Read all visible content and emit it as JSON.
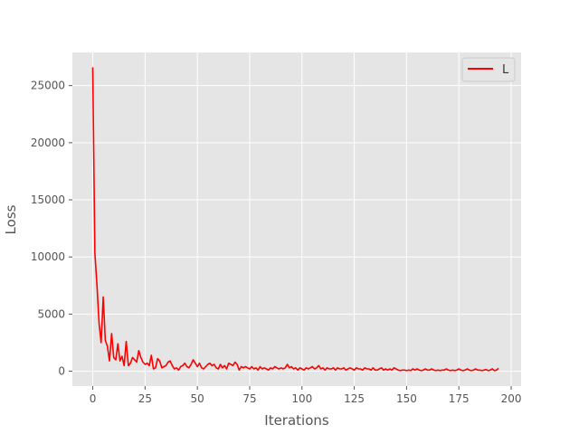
{
  "chart_data": {
    "type": "line",
    "title": "",
    "xlabel": "Iterations",
    "ylabel": "Loss",
    "xlim": [
      -9.75,
      204.75
    ],
    "ylim": [
      -1300,
      27900
    ],
    "xticks": [
      0,
      25,
      50,
      75,
      100,
      125,
      150,
      175,
      200
    ],
    "xtick_labels": [
      "0",
      "25",
      "50",
      "75",
      "100",
      "125",
      "150",
      "175",
      "200"
    ],
    "yticks": [
      0,
      5000,
      10000,
      15000,
      20000,
      25000
    ],
    "ytick_labels": [
      "0",
      "5000",
      "10000",
      "15000",
      "20000",
      "25000"
    ],
    "grid": true,
    "legend": {
      "position": "top-right"
    },
    "series": [
      {
        "name": "L",
        "color": "#ff0000",
        "x": [
          0,
          1,
          2,
          3,
          4,
          5,
          6,
          7,
          8,
          9,
          10,
          11,
          12,
          13,
          14,
          15,
          16,
          17,
          18,
          19,
          20,
          21,
          22,
          23,
          24,
          25,
          26,
          27,
          28,
          29,
          30,
          31,
          32,
          33,
          34,
          35,
          36,
          37,
          38,
          39,
          40,
          41,
          42,
          43,
          44,
          45,
          46,
          47,
          48,
          49,
          50,
          51,
          52,
          53,
          54,
          55,
          56,
          57,
          58,
          59,
          60,
          61,
          62,
          63,
          64,
          65,
          66,
          67,
          68,
          69,
          70,
          71,
          72,
          73,
          74,
          75,
          76,
          77,
          78,
          79,
          80,
          81,
          82,
          83,
          84,
          85,
          86,
          87,
          88,
          89,
          90,
          91,
          92,
          93,
          94,
          95,
          96,
          97,
          98,
          99,
          100,
          101,
          102,
          103,
          104,
          105,
          106,
          107,
          108,
          109,
          110,
          111,
          112,
          113,
          114,
          115,
          116,
          117,
          118,
          119,
          120,
          121,
          122,
          123,
          124,
          125,
          126,
          127,
          128,
          129,
          130,
          131,
          132,
          133,
          134,
          135,
          136,
          137,
          138,
          139,
          140,
          141,
          142,
          143,
          144,
          145,
          146,
          147,
          148,
          149,
          150,
          151,
          152,
          153,
          154,
          155,
          156,
          157,
          158,
          159,
          160,
          161,
          162,
          163,
          164,
          165,
          166,
          167,
          168,
          169,
          170,
          171,
          172,
          173,
          174,
          175,
          176,
          177,
          178,
          179,
          180,
          181,
          182,
          183,
          184,
          185,
          186,
          187,
          188,
          189,
          190,
          191,
          192,
          193,
          194
        ],
        "y": [
          26600,
          10300,
          7500,
          4200,
          2500,
          6500,
          2700,
          2200,
          900,
          3300,
          1200,
          1000,
          2400,
          900,
          1300,
          500,
          2600,
          500,
          700,
          1200,
          1000,
          800,
          1800,
          1200,
          800,
          600,
          700,
          500,
          1400,
          200,
          300,
          1100,
          900,
          300,
          400,
          500,
          800,
          900,
          500,
          200,
          300,
          100,
          400,
          500,
          700,
          400,
          300,
          600,
          1000,
          700,
          400,
          700,
          300,
          200,
          400,
          600,
          700,
          500,
          600,
          300,
          200,
          600,
          300,
          500,
          200,
          700,
          600,
          500,
          800,
          600,
          100,
          400,
          300,
          400,
          300,
          200,
          400,
          200,
          300,
          100,
          400,
          200,
          300,
          200,
          100,
          300,
          200,
          400,
          300,
          200,
          300,
          200,
          300,
          600,
          300,
          400,
          200,
          300,
          100,
          300,
          200,
          100,
          300,
          200,
          300,
          400,
          200,
          300,
          500,
          200,
          300,
          100,
          300,
          200,
          200,
          300,
          100,
          300,
          200,
          200,
          300,
          100,
          200,
          300,
          200,
          100,
          300,
          200,
          200,
          100,
          300,
          200,
          200,
          100,
          300,
          100,
          100,
          200,
          300,
          100,
          200,
          100,
          200,
          100,
          300,
          200,
          100,
          50,
          100,
          100,
          50,
          100,
          50,
          200,
          100,
          200,
          100,
          50,
          100,
          200,
          100,
          100,
          200,
          100,
          50,
          100,
          50,
          100,
          100,
          200,
          100,
          50,
          100,
          50,
          100,
          200,
          100,
          50,
          100,
          200,
          100,
          50,
          100,
          200,
          100,
          100,
          50,
          100,
          150,
          50,
          100,
          200,
          50,
          100,
          250
        ]
      }
    ]
  }
}
